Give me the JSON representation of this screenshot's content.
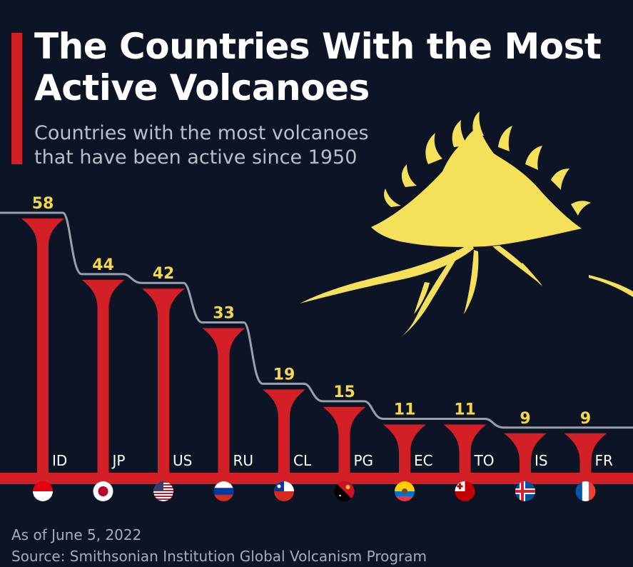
{
  "header": {
    "title_line1": "The Countries With the Most",
    "title_line2": "Active Volcanoes",
    "subtitle_line1": "Countries with the most volcanoes",
    "subtitle_line2": "that have been active since 1950"
  },
  "footer": {
    "note": "As of June 5, 2022",
    "source": "Source: Smithsonian Institution Global Volcanism Program"
  },
  "colors": {
    "background": "#0c1426",
    "bar": "#d31f26",
    "value_label": "#f5d84a",
    "step_line": "#9aa0ab",
    "volcano": "#f5e05a"
  },
  "chart_data": {
    "type": "bar",
    "categories": [
      "ID",
      "JP",
      "US",
      "RU",
      "CL",
      "PG",
      "EC",
      "TO",
      "IS",
      "FR"
    ],
    "values": [
      58,
      44,
      42,
      33,
      19,
      15,
      11,
      11,
      9,
      9
    ],
    "flags": [
      "flag-indonesia",
      "flag-japan",
      "flag-usa",
      "flag-russia",
      "flag-chile",
      "flag-papua-new-guinea",
      "flag-ecuador",
      "flag-tonga",
      "flag-iceland",
      "flag-france"
    ],
    "ylim": [
      0,
      58
    ],
    "grid": false,
    "legend": "none"
  }
}
